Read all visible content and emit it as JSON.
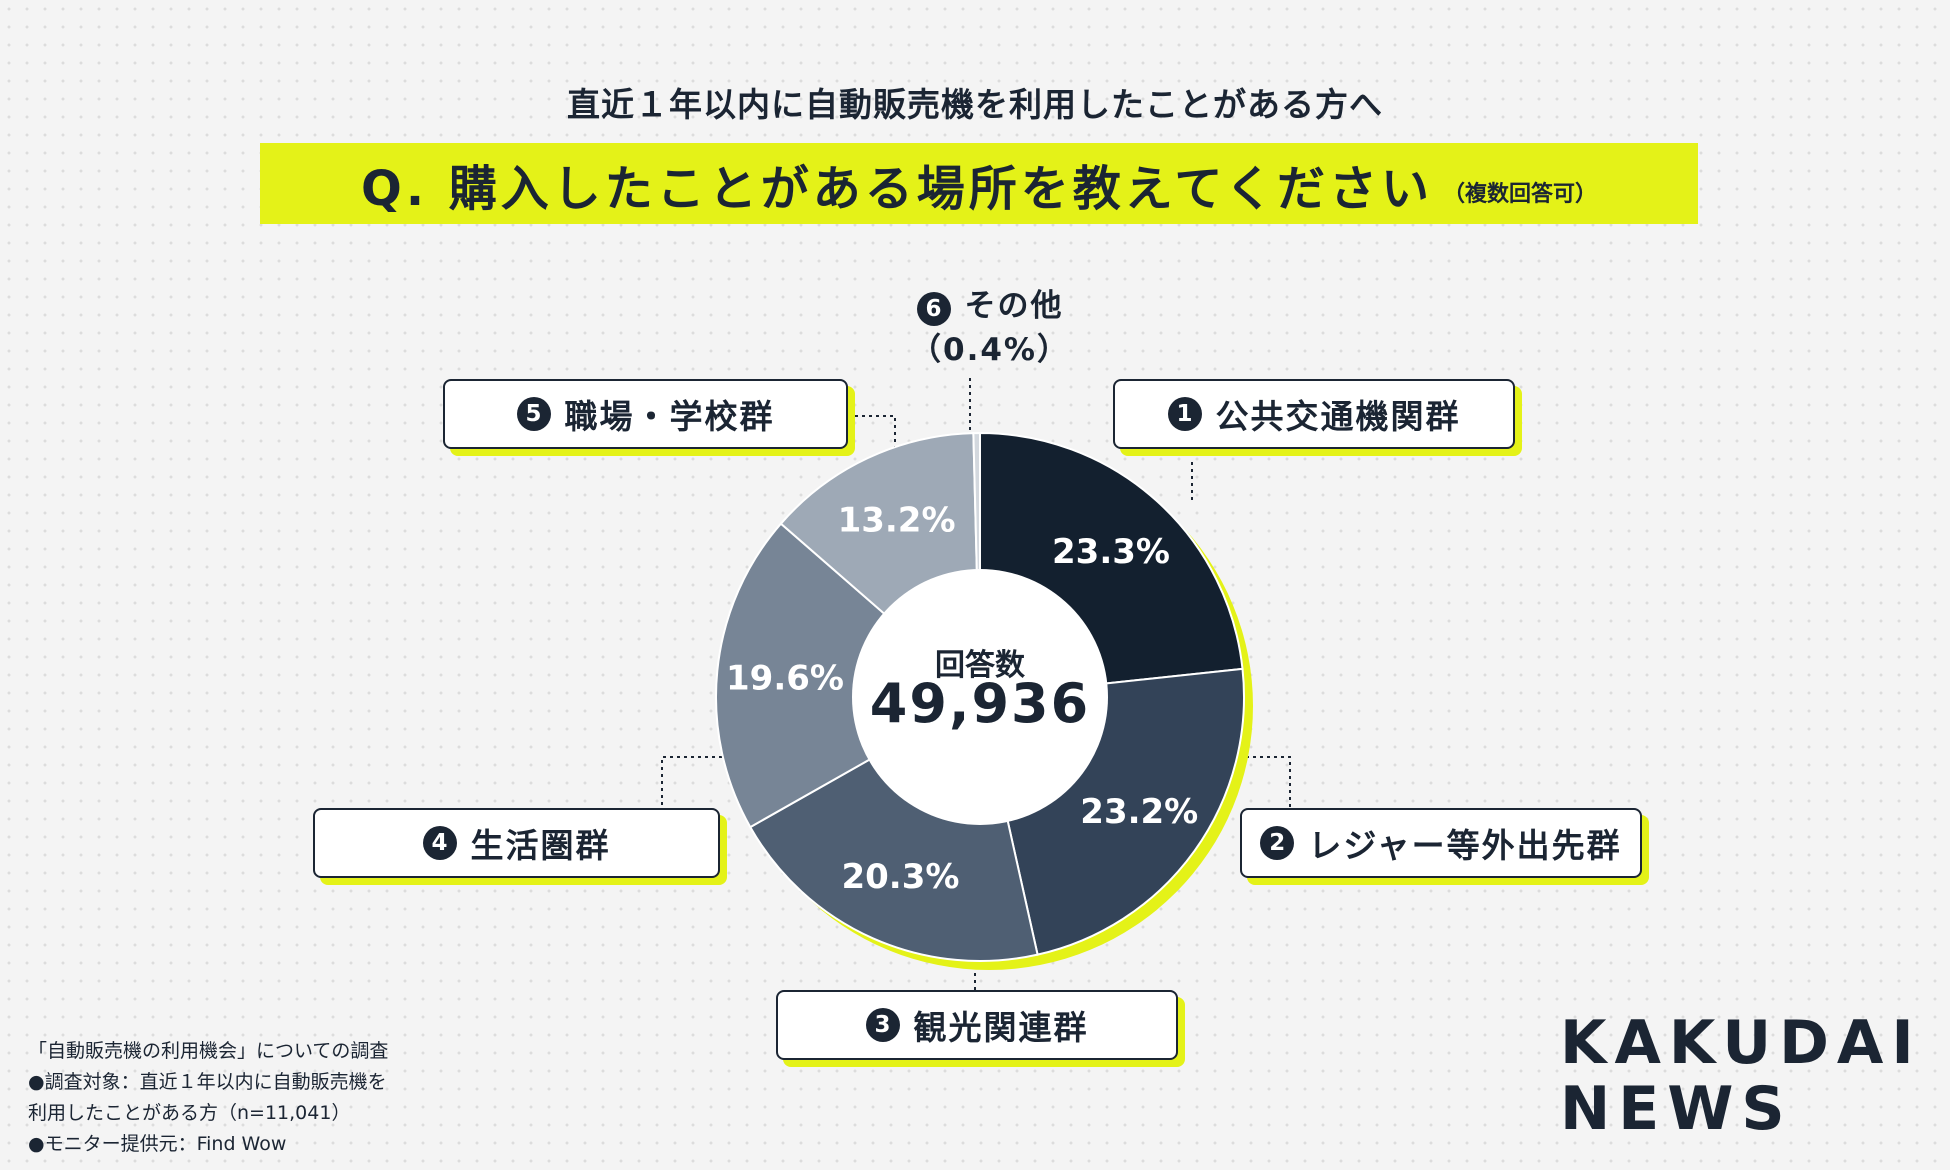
{
  "header": {
    "subtitle": "直近１年以内に自動販売機を利用したことがある方へ",
    "question": "Q. 購入したことがある場所を教えてください",
    "note": "（複数回答可）"
  },
  "center": {
    "label": "回答数",
    "value": "49,936"
  },
  "chart_data": {
    "type": "pie",
    "categories": [
      "公共交通機関群",
      "レジャー等外出先群",
      "観光関連群",
      "生活圏群",
      "職場・学校群",
      "その他"
    ],
    "numbers": [
      "1",
      "2",
      "3",
      "4",
      "5",
      "6"
    ],
    "values": [
      23.3,
      23.2,
      20.3,
      19.6,
      13.2,
      0.4
    ],
    "value_labels": [
      "23.3%",
      "23.2%",
      "20.3%",
      "19.6%",
      "13.2%",
      "（0.4%）"
    ],
    "colors": [
      "#13202f",
      "#334358",
      "#4f5f73",
      "#778596",
      "#9ea9b6",
      "#d3d8de"
    ],
    "accent_color": "#e4f218",
    "total": "49,936"
  },
  "notes": [
    "「自動販売機の利用機会」についての調査",
    "●調査対象：直近１年以内に自動販売機を",
    "利用したことがある方（n=11,041）",
    "●モニター提供元：Find Wow"
  ],
  "logo": {
    "line1": "KAKUDAI",
    "line2": "NEWS"
  }
}
